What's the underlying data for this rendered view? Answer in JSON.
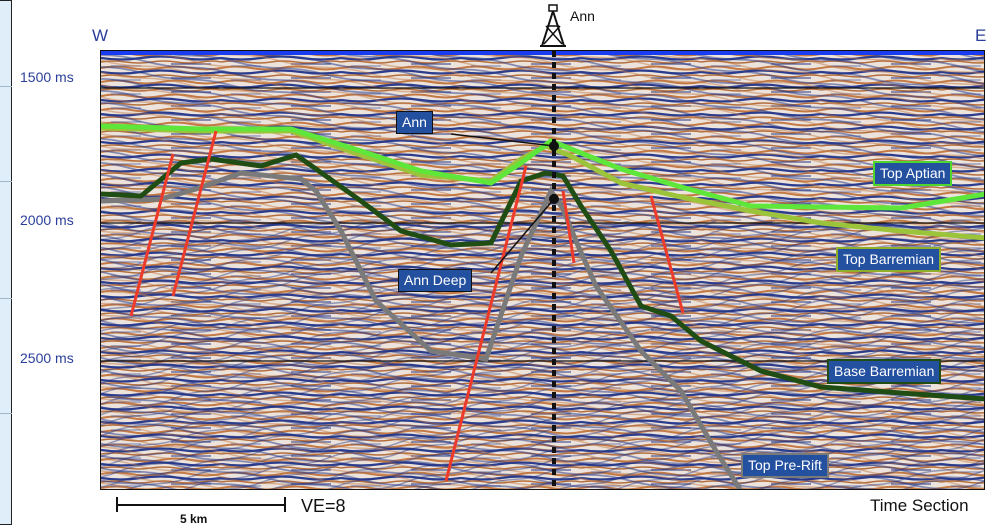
{
  "orientation": {
    "west": "W",
    "east": "E"
  },
  "well": {
    "name": "Ann"
  },
  "time_axis": [
    {
      "label": "1500 ms",
      "value": 1500
    },
    {
      "label": "2000 ms",
      "value": 2000
    },
    {
      "label": "2500 ms",
      "value": 2500
    }
  ],
  "horizons": [
    {
      "name": "Top Aptian",
      "color": "#5ee63a",
      "box_border": "#4fd62e"
    },
    {
      "name": "Top Barremian",
      "color": "#9bc43a",
      "box_border": "#8fae2a"
    },
    {
      "name": "Base Barremian",
      "color": "#1f4d14",
      "box_border": "#1f4d14"
    },
    {
      "name": "Top Pre-Rift",
      "color": "#7a7a7a",
      "box_border": "#7a7a7a"
    }
  ],
  "targets": [
    {
      "name": "Ann"
    },
    {
      "name": "Ann Deep"
    }
  ],
  "fault_color": "#ee3a2a",
  "scale": {
    "label": "5 km",
    "ve": "VE=8"
  },
  "section_type": "Time Section"
}
